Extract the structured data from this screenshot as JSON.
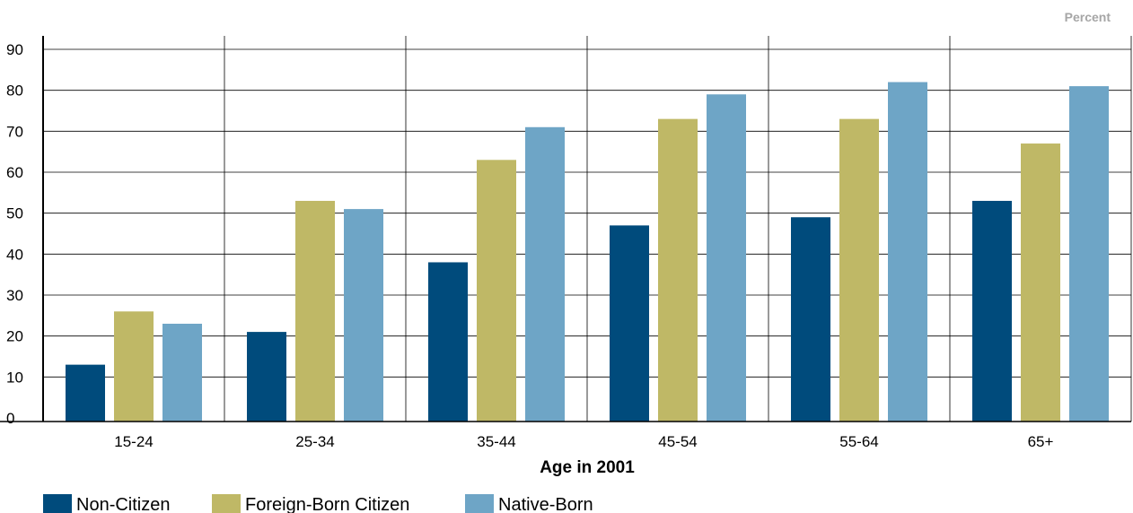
{
  "chart_data": {
    "type": "bar",
    "unit_label": "Percent",
    "xlabel": "Age in 2001",
    "categories": [
      "15-24",
      "25-34",
      "35-44",
      "45-54",
      "55-64",
      "65+"
    ],
    "series": [
      {
        "name": "Non-Citizen",
        "color": "#004b7c",
        "values": [
          13,
          21,
          38,
          47,
          49,
          53
        ]
      },
      {
        "name": "Foreign-Born Citizen",
        "color": "#bfb866",
        "values": [
          26,
          53,
          63,
          73,
          73,
          67
        ]
      },
      {
        "name": "Native-Born",
        "color": "#6ea5c6",
        "values": [
          23,
          51,
          71,
          79,
          82,
          81
        ]
      }
    ],
    "ylim": [
      0,
      90
    ],
    "yticks": [
      0,
      10,
      20,
      30,
      40,
      50,
      60,
      70,
      80,
      90
    ],
    "grid": true,
    "legend_position": "bottom-left"
  }
}
